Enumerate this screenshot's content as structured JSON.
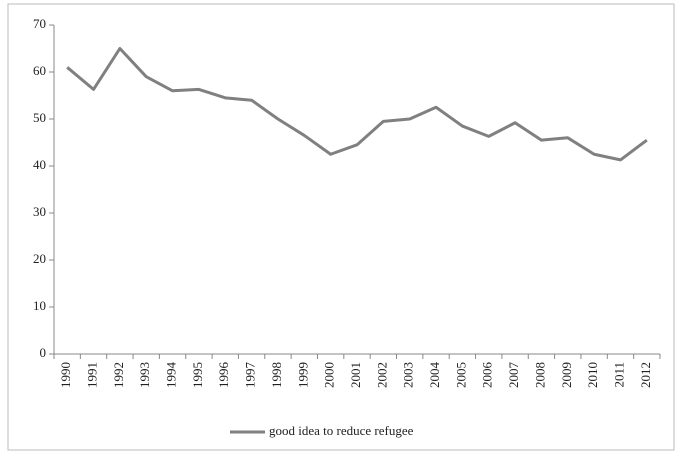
{
  "chart_data": {
    "type": "line",
    "categories": [
      "1990",
      "1991",
      "1992",
      "1993",
      "1994",
      "1995",
      "1996",
      "1997",
      "1998",
      "1999",
      "2000",
      "2001",
      "2002",
      "2003",
      "2004",
      "2005",
      "2006",
      "2007",
      "2008",
      "2009",
      "2010",
      "2011",
      "2012"
    ],
    "series": [
      {
        "name": "good idea to reduce refugee",
        "color": "#808080",
        "values": [
          61,
          56.3,
          65,
          59,
          56,
          56.3,
          54.5,
          54,
          50,
          46.5,
          42.5,
          44.5,
          49.5,
          50,
          52.5,
          48.5,
          46.3,
          49.2,
          45.5,
          46,
          42.5,
          41.3,
          45.5
        ]
      }
    ],
    "ylim": [
      0,
      70
    ],
    "yticks": [
      0,
      10,
      20,
      30,
      40,
      50,
      60,
      70
    ],
    "legend": "bottom"
  }
}
